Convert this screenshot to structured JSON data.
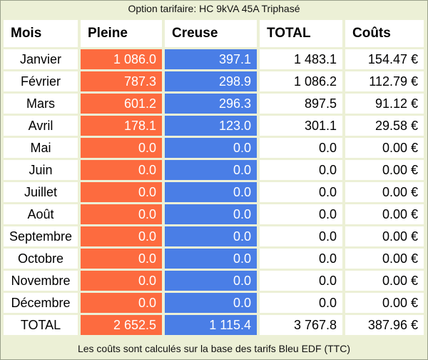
{
  "caption": "Option tarifaire: HC 9kVA 45A Triphasé",
  "headers": {
    "mois": "Mois",
    "pleine": "Pleine",
    "creuse": "Creuse",
    "total": "TOTAL",
    "couts": "Coûts"
  },
  "rows": [
    {
      "mois": "Janvier",
      "pleine": "1 086.0",
      "creuse": "397.1",
      "total": "1 483.1",
      "couts": "154.47 €"
    },
    {
      "mois": "Février",
      "pleine": "787.3",
      "creuse": "298.9",
      "total": "1 086.2",
      "couts": "112.79 €"
    },
    {
      "mois": "Mars",
      "pleine": "601.2",
      "creuse": "296.3",
      "total": "897.5",
      "couts": "91.12 €"
    },
    {
      "mois": "Avril",
      "pleine": "178.1",
      "creuse": "123.0",
      "total": "301.1",
      "couts": "29.58 €"
    },
    {
      "mois": "Mai",
      "pleine": "0.0",
      "creuse": "0.0",
      "total": "0.0",
      "couts": "0.00 €"
    },
    {
      "mois": "Juin",
      "pleine": "0.0",
      "creuse": "0.0",
      "total": "0.0",
      "couts": "0.00 €"
    },
    {
      "mois": "Juillet",
      "pleine": "0.0",
      "creuse": "0.0",
      "total": "0.0",
      "couts": "0.00 €"
    },
    {
      "mois": "Août",
      "pleine": "0.0",
      "creuse": "0.0",
      "total": "0.0",
      "couts": "0.00 €"
    },
    {
      "mois": "Septembre",
      "pleine": "0.0",
      "creuse": "0.0",
      "total": "0.0",
      "couts": "0.00 €"
    },
    {
      "mois": "Octobre",
      "pleine": "0.0",
      "creuse": "0.0",
      "total": "0.0",
      "couts": "0.00 €"
    },
    {
      "mois": "Novembre",
      "pleine": "0.0",
      "creuse": "0.0",
      "total": "0.0",
      "couts": "0.00 €"
    },
    {
      "mois": "Décembre",
      "pleine": "0.0",
      "creuse": "0.0",
      "total": "0.0",
      "couts": "0.00 €"
    }
  ],
  "totals": {
    "mois": "TOTAL",
    "pleine": "2 652.5",
    "creuse": "1 115.4",
    "total": "3 767.8",
    "couts": "387.96 €"
  },
  "footer": "Les coûts sont calculés sur la base des tarifs Bleu EDF (TTC)",
  "colors": {
    "pleine": "#fd6b3f",
    "creuse": "#4a7ee6",
    "background": "#ecf0d6"
  }
}
